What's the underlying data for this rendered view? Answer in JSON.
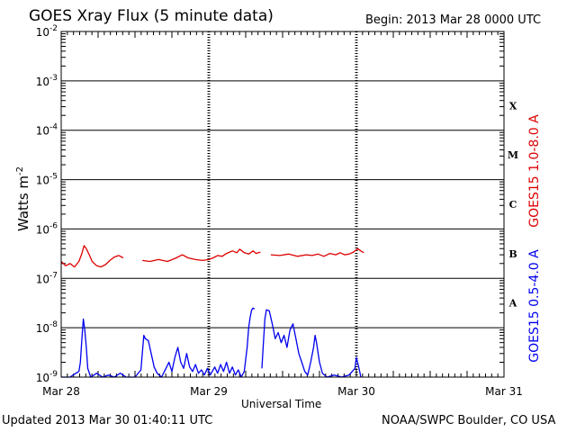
{
  "title": "GOES Xray Flux (5 minute data)",
  "begin_text": "Begin:  2013 Mar 28 0000 UTC",
  "updated_text": "Updated 2013 Mar 30 01:40:11 UTC",
  "credit_text": "NOAA/SWPC Boulder, CO USA",
  "colors": {
    "long": "#dd0000",
    "short": "#0000ee",
    "frame": "#000000"
  },
  "chart_data": {
    "type": "line",
    "xlabel": "Universal Time",
    "ylabel_base": "Watts m",
    "ylabel_exp": "-2",
    "yscale": "log",
    "ylim": [
      1e-09,
      0.01
    ],
    "y_ticks": [
      {
        "base": "10",
        "exp": "-9",
        "value": 1e-09
      },
      {
        "base": "10",
        "exp": "-8",
        "value": 1e-08
      },
      {
        "base": "10",
        "exp": "-7",
        "value": 1e-07
      },
      {
        "base": "10",
        "exp": "-6",
        "value": 1e-06
      },
      {
        "base": "10",
        "exp": "-5",
        "value": 1e-05
      },
      {
        "base": "10",
        "exp": "-4",
        "value": 0.0001
      },
      {
        "base": "10",
        "exp": "-3",
        "value": 0.001
      },
      {
        "base": "10",
        "exp": "-2",
        "value": 0.01
      }
    ],
    "xlim_days": [
      0,
      3
    ],
    "x_ticks": [
      {
        "label": "Mar 28",
        "day": 0
      },
      {
        "label": "Mar 29",
        "day": 1
      },
      {
        "label": "Mar 30",
        "day": 2
      },
      {
        "label": "Mar 31",
        "day": 3
      }
    ],
    "flare_classes": [
      {
        "label": "A",
        "value": 3.16e-08
      },
      {
        "label": "B",
        "value": 3.16e-07
      },
      {
        "label": "C",
        "value": 3.16e-06
      },
      {
        "label": "M",
        "value": 3.16e-05
      },
      {
        "label": "X",
        "value": 0.000316
      }
    ],
    "series": [
      {
        "name": "GOES15 1.0-8.0 A",
        "color": "#dd0000",
        "segments": [
          [
            [
              0.0,
              2.2e-07
            ],
            [
              0.03,
              1.8e-07
            ],
            [
              0.06,
              2e-07
            ],
            [
              0.09,
              1.7e-07
            ],
            [
              0.12,
              2.2e-07
            ],
            [
              0.14,
              3.2e-07
            ],
            [
              0.155,
              4.6e-07
            ],
            [
              0.17,
              4e-07
            ],
            [
              0.19,
              3e-07
            ],
            [
              0.21,
              2.2e-07
            ],
            [
              0.24,
              1.8e-07
            ],
            [
              0.27,
              1.7e-07
            ],
            [
              0.3,
              1.9e-07
            ],
            [
              0.33,
              2.3e-07
            ],
            [
              0.36,
              2.7e-07
            ],
            [
              0.39,
              2.9e-07
            ],
            [
              0.42,
              2.6e-07
            ]
          ],
          [
            [
              0.55,
              2.3e-07
            ],
            [
              0.6,
              2.2e-07
            ],
            [
              0.66,
              2.4e-07
            ],
            [
              0.72,
              2.2e-07
            ],
            [
              0.78,
              2.6e-07
            ],
            [
              0.82,
              3e-07
            ],
            [
              0.86,
              2.6e-07
            ],
            [
              0.91,
              2.4e-07
            ],
            [
              0.96,
              2.3e-07
            ],
            [
              1.0,
              2.4e-07
            ],
            [
              1.03,
              2.6e-07
            ],
            [
              1.06,
              2.9e-07
            ],
            [
              1.09,
              2.8e-07
            ],
            [
              1.12,
              3.2e-07
            ],
            [
              1.16,
              3.6e-07
            ],
            [
              1.19,
              3.3e-07
            ],
            [
              1.21,
              3.9e-07
            ],
            [
              1.24,
              3.3e-07
            ],
            [
              1.27,
              3.1e-07
            ],
            [
              1.3,
              3.6e-07
            ],
            [
              1.32,
              3.2e-07
            ],
            [
              1.35,
              3.4e-07
            ]
          ],
          [
            [
              1.42,
              3e-07
            ],
            [
              1.48,
              2.9e-07
            ],
            [
              1.54,
              3.1e-07
            ],
            [
              1.6,
              2.8e-07
            ],
            [
              1.66,
              3e-07
            ],
            [
              1.7,
              2.9e-07
            ],
            [
              1.74,
              3.1e-07
            ],
            [
              1.78,
              2.8e-07
            ],
            [
              1.82,
              3.2e-07
            ],
            [
              1.86,
              3e-07
            ],
            [
              1.89,
              3.3e-07
            ],
            [
              1.92,
              3e-07
            ],
            [
              1.95,
              3.1e-07
            ],
            [
              1.98,
              3.4e-07
            ],
            [
              2.01,
              4e-07
            ],
            [
              2.03,
              3.6e-07
            ],
            [
              2.05,
              3.3e-07
            ]
          ]
        ]
      },
      {
        "name": "GOES15 0.5-4.0 A",
        "color": "#0000ee",
        "segments": [
          [
            [
              0.0,
              1e-09
            ],
            [
              0.06,
              1e-09
            ],
            [
              0.1,
              1.2e-09
            ],
            [
              0.12,
              1.3e-09
            ],
            [
              0.13,
              2e-09
            ],
            [
              0.14,
              6e-09
            ],
            [
              0.15,
              1.5e-08
            ],
            [
              0.16,
              9e-09
            ],
            [
              0.17,
              4e-09
            ],
            [
              0.18,
              1.5e-09
            ],
            [
              0.2,
              1e-09
            ],
            [
              0.24,
              1.2e-09
            ],
            [
              0.28,
              1e-09
            ],
            [
              0.32,
              1.1e-09
            ],
            [
              0.36,
              1e-09
            ],
            [
              0.4,
              1.2e-09
            ],
            [
              0.44,
              1e-09
            ],
            [
              0.5,
              1e-09
            ],
            [
              0.54,
              1.4e-09
            ],
            [
              0.56,
              7e-09
            ],
            [
              0.57,
              6e-09
            ],
            [
              0.59,
              5.5e-09
            ],
            [
              0.61,
              3e-09
            ],
            [
              0.63,
              1.6e-09
            ],
            [
              0.65,
              1.2e-09
            ],
            [
              0.68,
              1e-09
            ],
            [
              0.71,
              1.5e-09
            ],
            [
              0.73,
              2e-09
            ],
            [
              0.75,
              1.3e-09
            ],
            [
              0.77,
              2.5e-09
            ],
            [
              0.79,
              4e-09
            ],
            [
              0.81,
              2e-09
            ],
            [
              0.83,
              1.5e-09
            ],
            [
              0.85,
              3e-09
            ],
            [
              0.87,
              1.6e-09
            ],
            [
              0.89,
              1.3e-09
            ],
            [
              0.91,
              1.8e-09
            ],
            [
              0.93,
              1.2e-09
            ],
            [
              0.95,
              1.4e-09
            ],
            [
              0.97,
              1.1e-09
            ],
            [
              0.99,
              1.5e-09
            ],
            [
              1.01,
              1.1e-09
            ],
            [
              1.04,
              1.6e-09
            ],
            [
              1.06,
              1.2e-09
            ],
            [
              1.08,
              1.8e-09
            ],
            [
              1.1,
              1.3e-09
            ],
            [
              1.12,
              2e-09
            ],
            [
              1.14,
              1.2e-09
            ],
            [
              1.16,
              1.6e-09
            ],
            [
              1.18,
              1.1e-09
            ],
            [
              1.2,
              1.4e-09
            ],
            [
              1.22,
              1e-09
            ],
            [
              1.24,
              1.3e-09
            ],
            [
              1.26,
              4e-09
            ],
            [
              1.27,
              1e-08
            ],
            [
              1.28,
              1.6e-08
            ],
            [
              1.29,
              2.3e-08
            ],
            [
              1.3,
              2.5e-08
            ],
            [
              1.31,
              2.4e-08
            ]
          ],
          [
            [
              1.36,
              1.5e-09
            ],
            [
              1.37,
              5e-09
            ],
            [
              1.38,
              1.5e-08
            ],
            [
              1.39,
              2.3e-08
            ],
            [
              1.41,
              2.2e-08
            ],
            [
              1.43,
              1.2e-08
            ],
            [
              1.45,
              6e-09
            ],
            [
              1.47,
              8e-09
            ],
            [
              1.49,
              5e-09
            ],
            [
              1.51,
              7e-09
            ],
            [
              1.53,
              4e-09
            ],
            [
              1.55,
              9e-09
            ],
            [
              1.57,
              1.2e-08
            ],
            [
              1.59,
              6e-09
            ],
            [
              1.61,
              3e-09
            ],
            [
              1.63,
              2e-09
            ],
            [
              1.65,
              1.3e-09
            ],
            [
              1.67,
              1.1e-09
            ],
            [
              1.69,
              2e-09
            ],
            [
              1.71,
              4e-09
            ],
            [
              1.72,
              7e-09
            ],
            [
              1.73,
              5e-09
            ],
            [
              1.75,
              2e-09
            ],
            [
              1.77,
              1.2e-09
            ],
            [
              1.8,
              1e-09
            ],
            [
              1.85,
              1.1e-09
            ],
            [
              1.9,
              1e-09
            ],
            [
              1.95,
              1.1e-09
            ],
            [
              1.99,
              1.5e-09
            ],
            [
              2.0,
              2.5e-09
            ],
            [
              2.02,
              1.4e-09
            ],
            [
              2.03,
              1e-09
            ]
          ]
        ]
      }
    ]
  }
}
